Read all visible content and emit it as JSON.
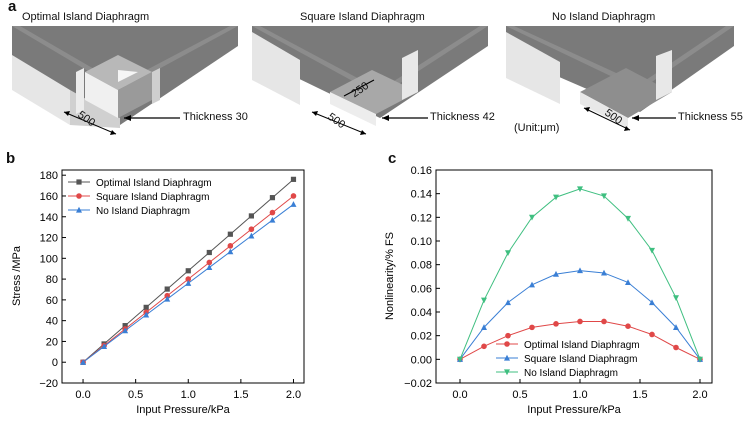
{
  "panel_a": {
    "letter": "a",
    "diagrams": [
      {
        "title": "Optimal Island Diaphragm",
        "dim_label": "500",
        "thickness_label": "Thickness 30"
      },
      {
        "title": "Square Island Diaphragm",
        "dim_label": "500",
        "island_label": "250",
        "thickness_label": "Thickness 42"
      },
      {
        "title": "No Island Diaphragm",
        "dim_label": "500",
        "thickness_label": "Thickness 55"
      }
    ],
    "unit_note": "(Unit:μm)"
  },
  "chart_data": [
    {
      "panel": "b",
      "type": "line",
      "xlabel": "Input Pressure/kPa",
      "ylabel": "Stress /MPa",
      "xlim": [
        -0.2,
        2.1
      ],
      "ylim": [
        -20,
        185
      ],
      "xticks": [
        "0.0",
        "0.5",
        "1.0",
        "1.5",
        "2.0"
      ],
      "yticks": [
        "−20",
        "0",
        "20",
        "40",
        "60",
        "80",
        "100",
        "120",
        "140",
        "160",
        "180"
      ],
      "legend_position": "top-left",
      "grid": false,
      "x": [
        0,
        0.2,
        0.4,
        0.6,
        0.8,
        1.0,
        1.2,
        1.4,
        1.6,
        1.8,
        2.0
      ],
      "series": [
        {
          "name": "Optimal Island Diaphragm",
          "color": "#555555",
          "marker": "square",
          "values": [
            0,
            17.6,
            35.2,
            52.8,
            70.4,
            88,
            105.6,
            123.2,
            140.8,
            158.4,
            176
          ]
        },
        {
          "name": "Square Island Diaphragm",
          "color": "#e04848",
          "marker": "circle",
          "values": [
            0,
            16,
            32,
            48,
            64,
            80,
            96,
            112,
            128,
            144,
            160
          ]
        },
        {
          "name": "No Island Diaphragm",
          "color": "#3a7fd5",
          "marker": "triangle-up",
          "values": [
            0,
            15.2,
            30.4,
            45.6,
            60.8,
            76,
            91.2,
            106.4,
            121.6,
            136.8,
            152
          ]
        }
      ]
    },
    {
      "panel": "c",
      "type": "line",
      "xlabel": "Input Pressure/kPa",
      "ylabel": "Nonlinearity/% FS",
      "xlim": [
        -0.2,
        2.1
      ],
      "ylim": [
        -0.02,
        0.16
      ],
      "xticks": [
        "0.0",
        "0.5",
        "1.0",
        "1.5",
        "2.0"
      ],
      "yticks": [
        "−0.02",
        "0.00",
        "0.02",
        "0.04",
        "0.06",
        "0.08",
        "0.10",
        "0.12",
        "0.14",
        "0.16"
      ],
      "legend_position": "bottom-center",
      "grid": false,
      "x": [
        0,
        0.2,
        0.4,
        0.6,
        0.8,
        1.0,
        1.2,
        1.4,
        1.6,
        1.8,
        2.0
      ],
      "series": [
        {
          "name": "Optimal Island Diaphragm",
          "color": "#e04848",
          "marker": "circle",
          "values": [
            0,
            0.011,
            0.02,
            0.027,
            0.03,
            0.032,
            0.032,
            0.028,
            0.021,
            0.01,
            0
          ]
        },
        {
          "name": "Square Island Diaphragm",
          "color": "#3a7fd5",
          "marker": "triangle-up",
          "values": [
            0,
            0.027,
            0.048,
            0.063,
            0.072,
            0.075,
            0.073,
            0.065,
            0.048,
            0.027,
            0
          ]
        },
        {
          "name": "No Island Diaphragm",
          "color": "#3fbf80",
          "marker": "triangle-down",
          "values": [
            0,
            0.05,
            0.09,
            0.12,
            0.137,
            0.144,
            0.138,
            0.119,
            0.092,
            0.052,
            0
          ]
        }
      ]
    }
  ]
}
